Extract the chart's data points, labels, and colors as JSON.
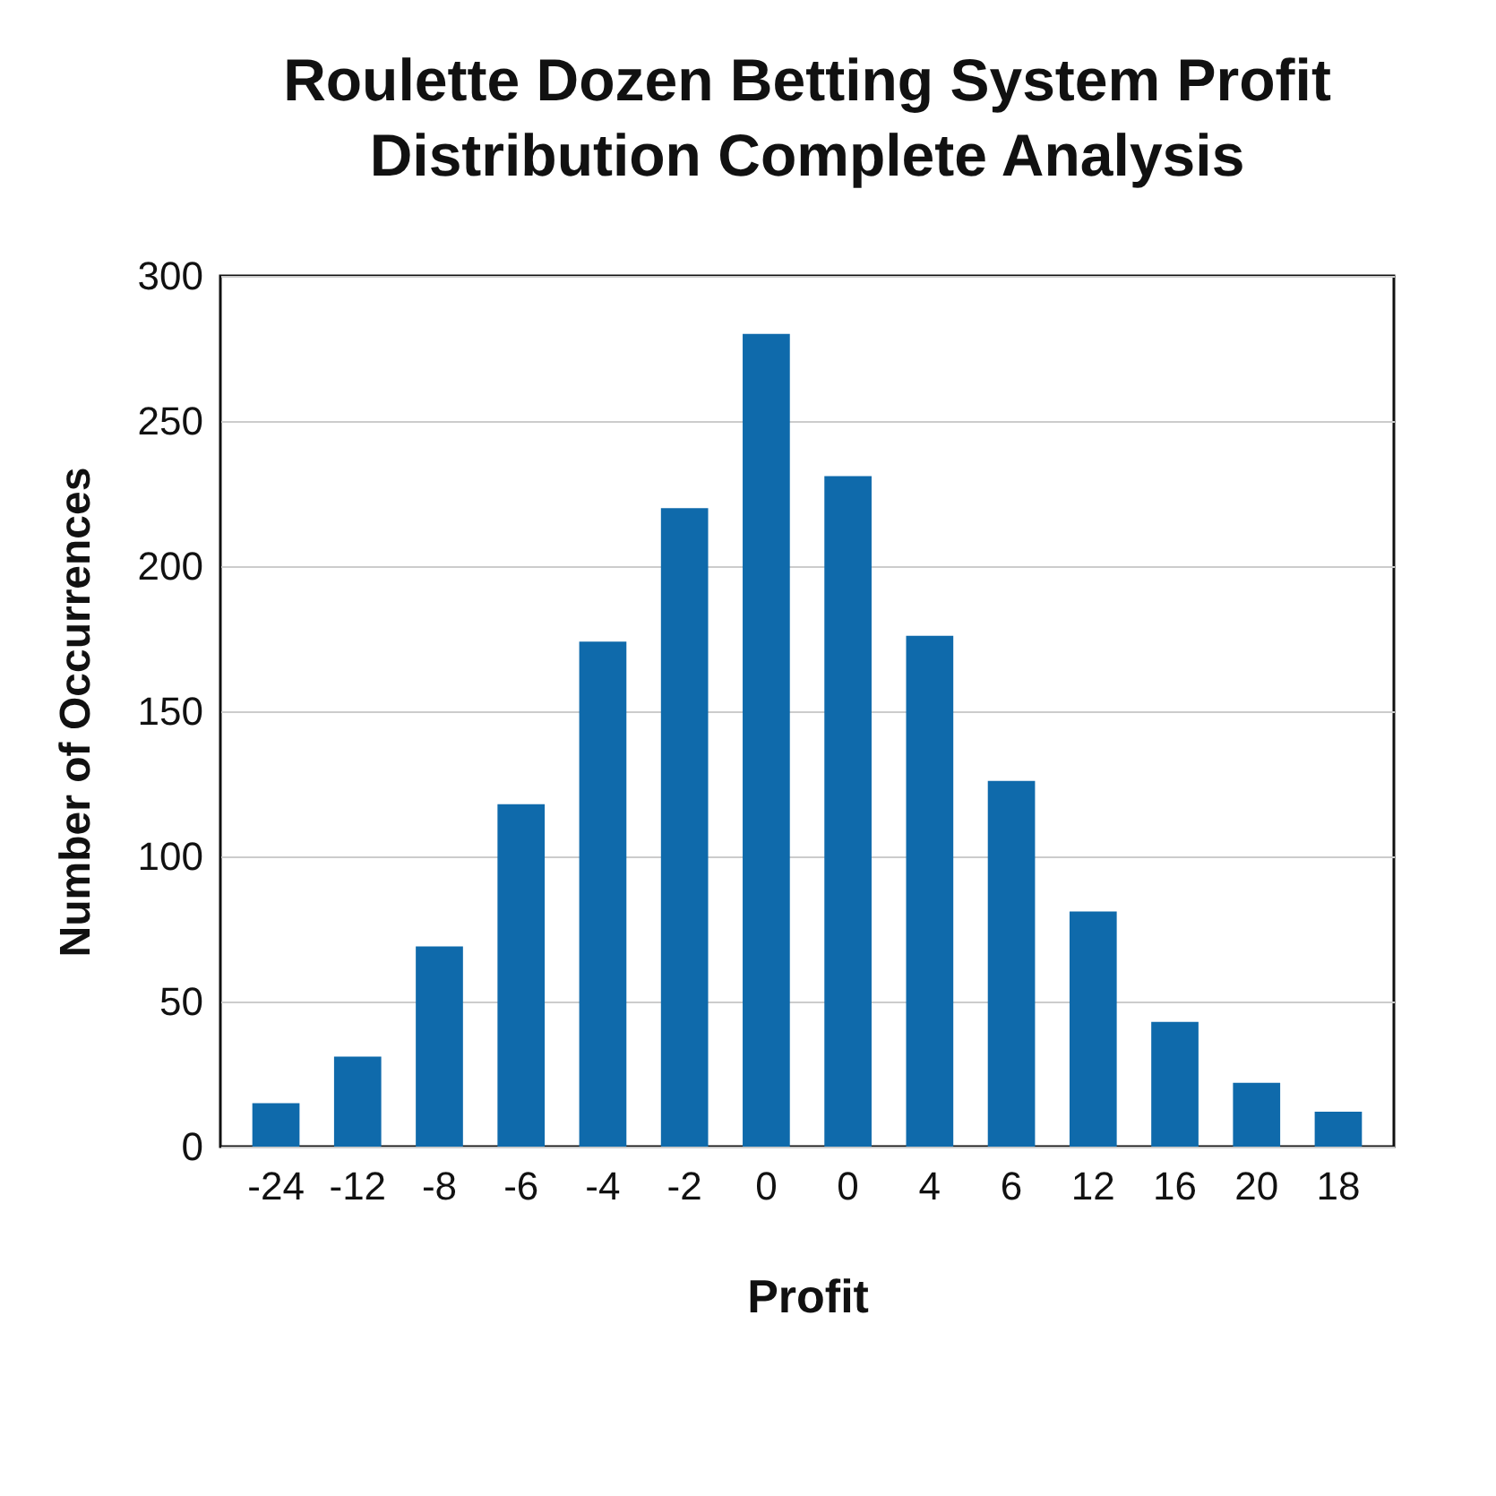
{
  "chart_data": {
    "type": "bar",
    "title": "Roulette Dozen Betting System Profit Distribution Complete Analysis",
    "xlabel": "Profit",
    "ylabel": "Number of Occurrences",
    "categories": [
      "-24",
      "-12",
      "-8",
      "-6",
      "-4",
      "-2",
      "0",
      "0",
      "4",
      "6",
      "12",
      "16",
      "20",
      "18"
    ],
    "values": [
      15,
      31,
      69,
      118,
      174,
      220,
      280,
      231,
      176,
      126,
      81,
      43,
      22,
      12
    ],
    "color": "#0f6aab",
    "ylim": [
      0,
      300
    ],
    "yticks": [
      0,
      50,
      100,
      150,
      200,
      250,
      300
    ],
    "grid": "y"
  }
}
